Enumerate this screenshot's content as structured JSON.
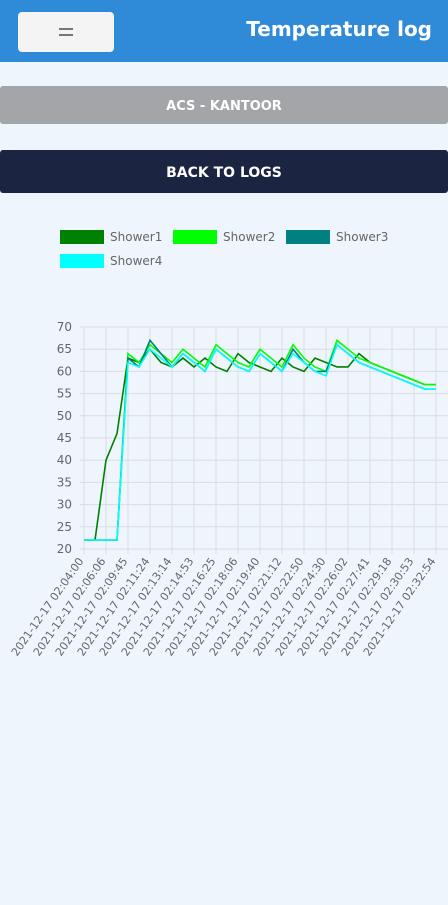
{
  "header": {
    "title": "Temperature log"
  },
  "location_bar": {
    "label": "ACS - KANTOOR"
  },
  "back_button": {
    "label": "BACK TO LOGS"
  },
  "chart_data": {
    "type": "line",
    "categories": [
      "2021-12-17 02:04:00",
      null,
      "2021-12-17 02:06:06",
      null,
      "2021-12-17 02:09:45",
      null,
      "2021-12-17 02:11:24",
      null,
      "2021-12-17 02:13:14",
      null,
      "2021-12-17 02:14:53",
      null,
      "2021-12-17 02:16:25",
      null,
      "2021-12-17 02:18:06",
      null,
      "2021-12-17 02:19:40",
      null,
      "2021-12-17 02:21:12",
      null,
      "2021-12-17 02:22:50",
      null,
      "2021-12-17 02:24:30",
      null,
      "2021-12-17 02:26:02",
      null,
      "2021-12-17 02:27:41",
      null,
      "2021-12-17 02:29:18",
      null,
      "2021-12-17 02:30:53",
      null,
      "2021-12-17 02:32:54"
    ],
    "series": [
      {
        "name": "Shower1",
        "color": "#008000",
        "values": [
          22,
          22,
          40,
          46,
          63,
          62,
          65,
          62,
          61,
          63,
          61,
          63,
          61,
          60,
          64,
          62,
          61,
          60,
          63,
          61,
          60,
          63,
          62,
          61,
          61,
          64,
          62,
          61,
          60,
          59,
          58,
          57,
          57
        ]
      },
      {
        "name": "Shower2",
        "color": "#00ff00",
        "values": [
          22,
          22,
          22,
          22,
          64,
          62,
          66,
          64,
          62,
          65,
          63,
          61,
          66,
          64,
          62,
          61,
          65,
          63,
          61,
          66,
          63,
          61,
          60,
          67,
          65,
          63,
          62,
          61,
          60,
          59,
          58,
          57,
          57
        ]
      },
      {
        "name": "Shower3",
        "color": "#008080",
        "values": [
          22,
          22,
          22,
          22,
          63,
          61,
          67,
          64,
          61,
          64,
          62,
          60,
          65,
          63,
          61,
          60,
          64,
          62,
          60,
          65,
          62,
          60,
          60,
          66,
          64,
          62,
          61,
          60,
          59,
          58,
          57,
          56,
          56
        ]
      },
      {
        "name": "Shower4",
        "color": "#00ffff",
        "values": [
          22,
          22,
          22,
          22,
          62,
          61,
          65,
          63,
          61,
          64,
          62,
          60,
          65,
          63,
          61,
          60,
          64,
          62,
          60,
          64,
          62,
          60,
          59,
          66,
          64,
          62,
          61,
          60,
          59,
          58,
          57,
          56,
          56
        ]
      }
    ],
    "ylim": [
      20,
      70
    ],
    "yticks": [
      20,
      25,
      30,
      35,
      40,
      45,
      50,
      55,
      60,
      65,
      70
    ],
    "grid": true
  }
}
